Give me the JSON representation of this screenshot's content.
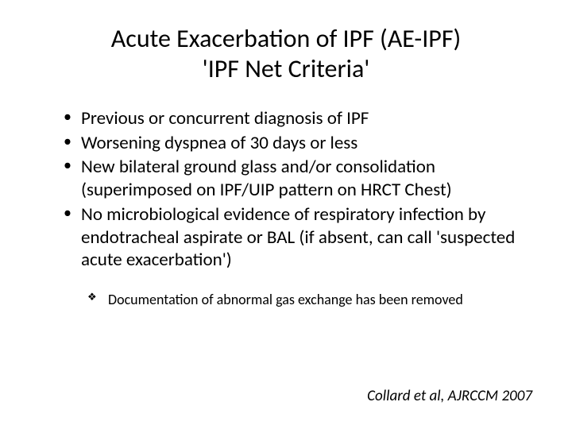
{
  "title": {
    "line1": "Acute Exacerbation of IPF (AE-IPF)",
    "line2": "'IPF Net Criteria'"
  },
  "main_bullets": [
    "Previous or concurrent diagnosis of IPF",
    "Worsening dyspnea of 30 days or less",
    "New bilateral ground glass and/or consolidation (superimposed on IPF/UIP pattern on HRCT Chest)",
    "No microbiological evidence of respiratory infection by endotracheal aspirate or BAL (if absent, can call 'suspected acute exacerbation')"
  ],
  "sub_bullets": [
    "Documentation of abnormal gas exchange has been removed"
  ],
  "citation": "Collard et al, AJRCCM 2007",
  "styling": {
    "background_color": "#ffffff",
    "text_color": "#000000",
    "title_fontsize": 32,
    "body_fontsize": 23,
    "sub_fontsize": 18,
    "citation_fontsize": 19,
    "font_family": "Calibri"
  }
}
